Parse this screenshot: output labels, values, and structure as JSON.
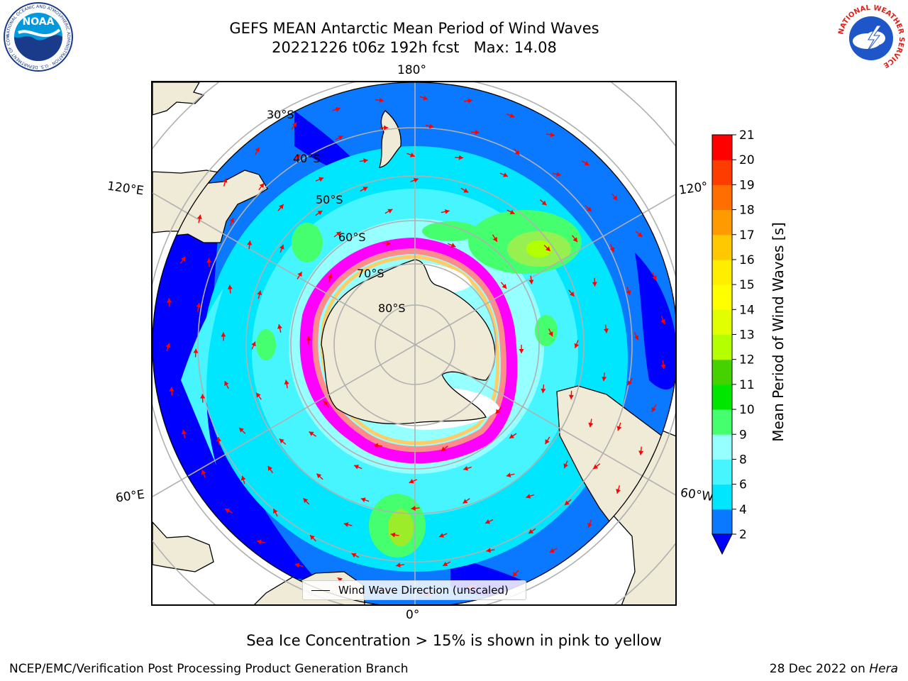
{
  "header": {
    "title_line1": "GEFS MEAN Antarctic Mean Period of Wind Waves",
    "title_line2": "20221226 t06z 192h fcst   Max: 14.08"
  },
  "map": {
    "projection": "south-polar-stereographic",
    "meridian_labels": {
      "top": "180°",
      "bottom": "0°",
      "upper_left": "120°E",
      "upper_right": "120°",
      "lower_left": "60°E",
      "lower_right": "60°W"
    },
    "latitude_labels": [
      "30°S",
      "40°S",
      "50°S",
      "60°S",
      "70°S",
      "80°S"
    ],
    "legend_label": "Wind Wave Direction (unscaled)",
    "arrow_color": "#ff0000",
    "land_color": "#efebd7",
    "sea_ice_colors": [
      "#ff00ff",
      "#ff8c8c",
      "#ffcc66",
      "#ffffff"
    ]
  },
  "colorbar": {
    "label": "Mean Period of Wind Waves [s]",
    "ticks": [
      "2",
      "4",
      "6",
      "8",
      "9",
      "10",
      "11",
      "12",
      "13",
      "14",
      "15",
      "16",
      "17",
      "18",
      "19",
      "20",
      "21"
    ],
    "colors": [
      "#0a78ff",
      "#00e6ff",
      "#46f5ff",
      "#96ffff",
      "#46ff6e",
      "#00e600",
      "#46d200",
      "#b4ff00",
      "#e1ff00",
      "#ffff00",
      "#ffee00",
      "#ffc800",
      "#ff9b00",
      "#ff6e00",
      "#ff3c00",
      "#ff0000"
    ],
    "under_color": "#0000ff"
  },
  "footer": {
    "note": "Sea Ice Concentration > 15% is shown in pink to yellow",
    "credit_left": "NCEP/EMC/Verification Post Processing Product Generation Branch",
    "credit_date": "28 Dec 2022 on ",
    "credit_machine": "Hera"
  },
  "logos": {
    "noaa_text": "NOAA",
    "noaa_ring_text": "NATIONAL OCEANIC AND ATMOSPHERIC ADMINISTRATION · U.S. DEPARTMENT OF COMMERCE",
    "nws_ring_text": "NATIONAL WEATHER SERVICE"
  }
}
